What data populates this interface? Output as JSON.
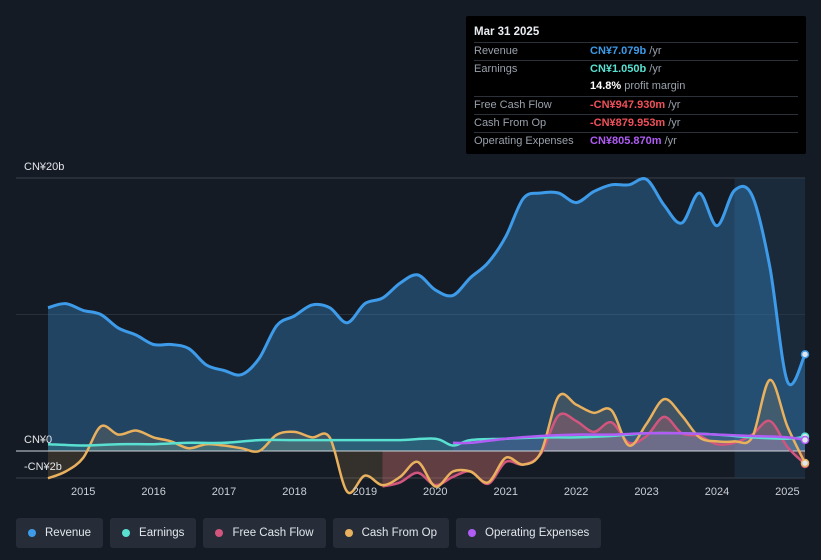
{
  "tooltip": {
    "date": "Mar 31 2025",
    "rows": [
      {
        "label": "Revenue",
        "value": "CN¥7.079b",
        "unit": "/yr",
        "color": "#3d9be9"
      },
      {
        "label": "Earnings",
        "value": "CN¥1.050b",
        "unit": "/yr",
        "color": "#59e0d0"
      },
      {
        "label": "",
        "value": "14.8%",
        "unit": "profit margin",
        "color": "#ffffff"
      },
      {
        "label": "Free Cash Flow",
        "value": "-CN¥947.930m",
        "unit": "/yr",
        "color": "#f0505a"
      },
      {
        "label": "Cash From Op",
        "value": "-CN¥879.953m",
        "unit": "/yr",
        "color": "#f0505a"
      },
      {
        "label": "Operating Expenses",
        "value": "CN¥805.870m",
        "unit": "/yr",
        "color": "#b05cf5"
      }
    ]
  },
  "legend": [
    {
      "label": "Revenue",
      "color": "#3d9be9"
    },
    {
      "label": "Earnings",
      "color": "#59e0d0"
    },
    {
      "label": "Free Cash Flow",
      "color": "#d2557e"
    },
    {
      "label": "Cash From Op",
      "color": "#e9b15e"
    },
    {
      "label": "Operating Expenses",
      "color": "#b05cf5"
    }
  ],
  "chart_data": {
    "type": "area",
    "y_unit": "CN¥ b",
    "ylim": [
      -2,
      20
    ],
    "y_tick_labels": [
      {
        "value": 20,
        "label": "CN¥20b"
      },
      {
        "value": 0,
        "label": "CN¥0"
      },
      {
        "value": -2,
        "label": "-CN¥2b"
      }
    ],
    "xlim": [
      2014.5,
      2025.25
    ],
    "x_ticks": [
      "2015",
      "2016",
      "2017",
      "2018",
      "2019",
      "2020",
      "2021",
      "2022",
      "2023",
      "2024",
      "2025"
    ],
    "series": [
      {
        "name": "Revenue",
        "color": "#3d9be9",
        "x": [
          2014.5,
          2014.75,
          2015.0,
          2015.25,
          2015.5,
          2015.75,
          2016.0,
          2016.25,
          2016.5,
          2016.75,
          2017.0,
          2017.25,
          2017.5,
          2017.75,
          2018.0,
          2018.25,
          2018.5,
          2018.75,
          2019.0,
          2019.25,
          2019.5,
          2019.75,
          2020.0,
          2020.25,
          2020.5,
          2020.75,
          2021.0,
          2021.25,
          2021.5,
          2021.75,
          2022.0,
          2022.25,
          2022.5,
          2022.75,
          2023.0,
          2023.25,
          2023.5,
          2023.75,
          2024.0,
          2024.25,
          2024.5,
          2024.75,
          2025.0,
          2025.25
        ],
        "values": [
          10.5,
          10.8,
          10.3,
          10.0,
          9.0,
          8.5,
          7.8,
          7.8,
          7.5,
          6.3,
          5.9,
          5.6,
          6.8,
          9.2,
          9.9,
          10.7,
          10.5,
          9.4,
          10.8,
          11.2,
          12.3,
          12.9,
          11.8,
          11.4,
          12.7,
          13.8,
          15.7,
          18.5,
          18.9,
          18.9,
          18.2,
          19.0,
          19.5,
          19.5,
          19.9,
          18.0,
          16.7,
          18.9,
          16.5,
          19.1,
          18.7,
          13.5,
          5.1,
          7.08
        ]
      },
      {
        "name": "Earnings",
        "color": "#59e0d0",
        "x": [
          2014.5,
          2015.0,
          2015.5,
          2016.0,
          2016.5,
          2017.0,
          2017.5,
          2018.0,
          2018.5,
          2019.0,
          2019.5,
          2020.0,
          2020.25,
          2020.5,
          2021.0,
          2021.5,
          2022.0,
          2022.5,
          2023.0,
          2023.5,
          2024.0,
          2024.5,
          2025.0,
          2025.25
        ],
        "values": [
          0.5,
          0.4,
          0.5,
          0.5,
          0.6,
          0.6,
          0.8,
          0.8,
          0.8,
          0.8,
          0.8,
          0.9,
          0.4,
          0.8,
          0.9,
          1.0,
          1.0,
          1.1,
          1.3,
          1.3,
          1.2,
          1.0,
          0.9,
          1.05
        ]
      },
      {
        "name": "Free Cash Flow",
        "color": "#d2557e",
        "x": [
          2019.25,
          2019.5,
          2019.75,
          2020.0,
          2020.25,
          2020.5,
          2020.75,
          2021.0,
          2021.25,
          2021.5,
          2021.75,
          2022.0,
          2022.25,
          2022.5,
          2022.75,
          2023.0,
          2023.25,
          2023.5,
          2023.75,
          2024.0,
          2024.25,
          2024.5,
          2024.75,
          2025.0,
          2025.25
        ],
        "values": [
          -2.6,
          -2.3,
          -1.6,
          -2.5,
          -1.9,
          -1.5,
          -2.4,
          -0.8,
          -1.0,
          -0.2,
          2.6,
          2.2,
          1.4,
          2.1,
          0.6,
          1.1,
          2.5,
          1.3,
          1.1,
          0.5,
          0.6,
          1.2,
          2.2,
          0.3,
          -0.95
        ]
      },
      {
        "name": "Cash From Op",
        "color": "#e9b15e",
        "x": [
          2014.5,
          2014.75,
          2015.0,
          2015.25,
          2015.5,
          2015.75,
          2016.0,
          2016.25,
          2016.5,
          2016.75,
          2017.0,
          2017.25,
          2017.5,
          2017.75,
          2018.0,
          2018.25,
          2018.5,
          2018.75,
          2019.0,
          2019.25,
          2019.5,
          2019.75,
          2020.0,
          2020.25,
          2020.5,
          2020.75,
          2021.0,
          2021.25,
          2021.5,
          2021.75,
          2022.0,
          2022.25,
          2022.5,
          2022.75,
          2023.0,
          2023.25,
          2023.5,
          2023.75,
          2024.0,
          2024.25,
          2024.5,
          2024.75,
          2025.0,
          2025.25
        ],
        "values": [
          -2.0,
          -1.5,
          -0.5,
          1.8,
          1.2,
          1.5,
          1.0,
          0.7,
          0.2,
          0.5,
          0.4,
          0.2,
          0.0,
          1.2,
          1.4,
          1.0,
          1.0,
          -3.0,
          -1.8,
          -2.5,
          -1.9,
          -0.8,
          -2.6,
          -1.5,
          -1.5,
          -2.3,
          -0.5,
          -1.0,
          -0.1,
          4.0,
          3.4,
          2.8,
          3.0,
          0.4,
          2.0,
          3.8,
          2.6,
          1.0,
          0.7,
          0.7,
          1.0,
          5.2,
          1.8,
          -0.88
        ]
      },
      {
        "name": "Operating Expenses",
        "color": "#b05cf5",
        "x": [
          2020.25,
          2020.5,
          2021.0,
          2021.5,
          2022.0,
          2022.5,
          2023.0,
          2023.5,
          2024.0,
          2024.5,
          2025.0,
          2025.25
        ],
        "values": [
          0.6,
          0.6,
          0.9,
          1.1,
          1.2,
          1.2,
          1.3,
          1.3,
          1.2,
          1.1,
          1.0,
          0.81
        ]
      }
    ]
  }
}
